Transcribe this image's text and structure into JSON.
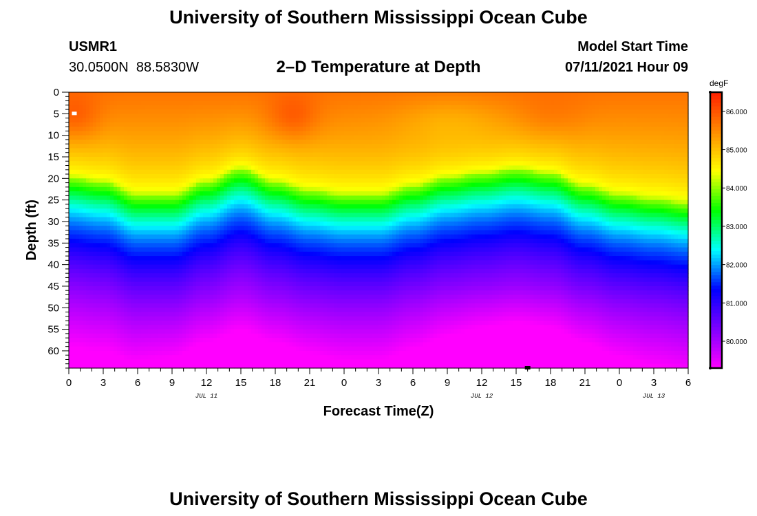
{
  "header": {
    "title": "University of Southern Mississippi Ocean Cube",
    "station_id": "USMR1",
    "coordinates": "30.0500N  88.5830W",
    "plot_title": "2–D Temperature at Depth",
    "model_start_label": "Model Start Time",
    "model_start_value": "07/11/2021 Hour 09"
  },
  "footer": {
    "title": "University of Southern Mississippi Ocean Cube"
  },
  "chart_data": {
    "type": "heatmap",
    "title": "2–D Temperature at Depth",
    "xlabel": "Forecast Time(Z)",
    "ylabel": "Depth (ft)",
    "x_ticks": [
      "0",
      "3",
      "6",
      "9",
      "12",
      "15",
      "18",
      "21",
      "0",
      "3",
      "6",
      "9",
      "12",
      "15",
      "18",
      "21",
      "0",
      "3",
      "6"
    ],
    "x_hours": [
      0,
      3,
      6,
      9,
      12,
      15,
      18,
      21,
      24,
      27,
      30,
      33,
      36,
      39,
      42,
      45,
      48,
      51,
      54
    ],
    "date_labels": [
      {
        "text": "JUL 11",
        "hour": 12
      },
      {
        "text": "JUL 12",
        "hour": 36
      },
      {
        "text": "JUL 13",
        "hour": 51
      }
    ],
    "xlim": [
      0,
      54
    ],
    "y_ticks": [
      0,
      5,
      10,
      15,
      20,
      25,
      30,
      35,
      40,
      45,
      50,
      55,
      60
    ],
    "ylim": [
      0,
      64
    ],
    "colorbar": {
      "unit": "degF",
      "ticks": [
        80.0,
        81.0,
        82.0,
        83.0,
        84.0,
        85.0,
        86.0
      ],
      "tick_labels": [
        "80.000",
        "81.000",
        "82.000",
        "83.000",
        "84.000",
        "85.000",
        "86.000"
      ],
      "range": [
        79.3,
        86.5
      ]
    },
    "surface_temperature_max": 86.5,
    "bottom_temperature_min": 79.3,
    "isotherm_84_depth_ft": [
      [
        0,
        20
      ],
      [
        3,
        21
      ],
      [
        6,
        24
      ],
      [
        9,
        24
      ],
      [
        12,
        21
      ],
      [
        15,
        18
      ],
      [
        18,
        21
      ],
      [
        21,
        23
      ],
      [
        24,
        24
      ],
      [
        27,
        24
      ],
      [
        30,
        22
      ],
      [
        33,
        20
      ],
      [
        36,
        19
      ],
      [
        39,
        18
      ],
      [
        42,
        19
      ],
      [
        45,
        22
      ],
      [
        48,
        24
      ],
      [
        51,
        25
      ],
      [
        54,
        26
      ]
    ]
  },
  "colors": {
    "palette": [
      "#ff00ff",
      "#7f00ff",
      "#0000ff",
      "#00ffff",
      "#00ff00",
      "#ffff00",
      "#ff8c00",
      "#ff2000"
    ]
  }
}
